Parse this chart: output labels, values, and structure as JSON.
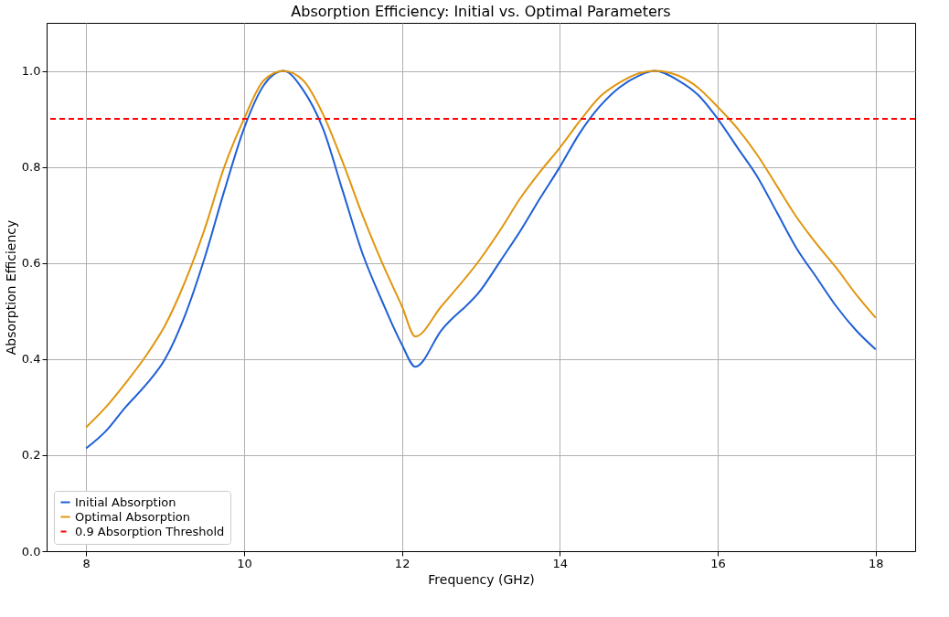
{
  "chart_data": {
    "type": "line",
    "title": "Absorption Efficiency: Initial vs. Optimal Parameters",
    "xlabel": "Frequency (GHz)",
    "ylabel": "Absorption Efficiency",
    "x": [
      8,
      8.25,
      8.5,
      8.75,
      9,
      9.25,
      9.5,
      9.75,
      10,
      10.25,
      10.5,
      10.75,
      11,
      11.25,
      11.5,
      11.75,
      12,
      12.17,
      12.5,
      13,
      13.25,
      13.5,
      13.75,
      14,
      14.25,
      14.5,
      14.75,
      15,
      15.2,
      15.5,
      15.75,
      16,
      16.25,
      16.5,
      16.75,
      17,
      17.25,
      17.5,
      17.75,
      18
    ],
    "series": [
      {
        "name": "Initial Absorption",
        "color": "#1f5fd6",
        "values": [
          0.214,
          0.25,
          0.3,
          0.345,
          0.4,
          0.49,
          0.61,
          0.75,
          0.88,
          0.97,
          1.0,
          0.96,
          0.88,
          0.75,
          0.62,
          0.52,
          0.43,
          0.384,
          0.46,
          0.544,
          0.605,
          0.667,
          0.735,
          0.8,
          0.87,
          0.925,
          0.965,
          0.99,
          1.0,
          0.98,
          0.95,
          0.9,
          0.84,
          0.78,
          0.705,
          0.63,
          0.57,
          0.51,
          0.46,
          0.42
        ]
      },
      {
        "name": "Optimal Absorption",
        "color": "#e0960f",
        "values": [
          0.258,
          0.3,
          0.35,
          0.405,
          0.47,
          0.56,
          0.67,
          0.8,
          0.9,
          0.98,
          1.0,
          0.98,
          0.91,
          0.81,
          0.7,
          0.6,
          0.51,
          0.447,
          0.51,
          0.61,
          0.67,
          0.735,
          0.79,
          0.84,
          0.895,
          0.945,
          0.975,
          0.995,
          1.0,
          0.99,
          0.965,
          0.925,
          0.88,
          0.825,
          0.76,
          0.695,
          0.64,
          0.59,
          0.535,
          0.486
        ]
      }
    ],
    "ref_lines": [
      {
        "axis": "y",
        "value": 0.9,
        "label": "0.9 Absorption Threshold",
        "color": "#ff0000",
        "line_style": "dashed"
      }
    ],
    "xlim": [
      7.5,
      18.5
    ],
    "xticks": [
      8,
      10,
      12,
      14,
      16,
      18
    ],
    "ylim": [
      0,
      1.1
    ],
    "yticks": [
      {
        "value": 0,
        "label": "0.0"
      },
      0.2,
      0.4,
      0.6,
      0.8,
      {
        "value": 1.0,
        "label": "1.0"
      }
    ],
    "grid": true,
    "legend": "bottom left",
    "line_style": "solid",
    "marker": "none"
  }
}
